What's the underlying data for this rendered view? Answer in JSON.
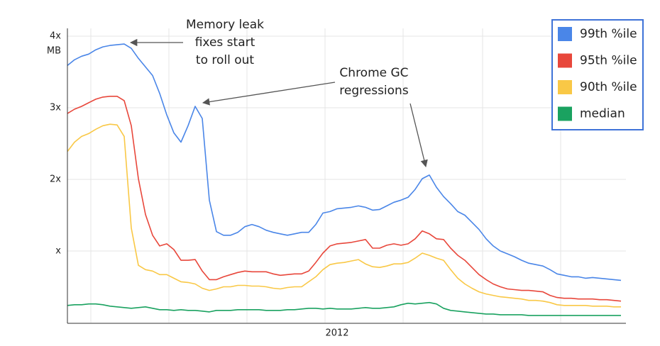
{
  "chart_data": {
    "type": "line",
    "y_unit": "MB",
    "categories": [
      null,
      null,
      null,
      null,
      null,
      null,
      null,
      null,
      null,
      null,
      null,
      null,
      null,
      null,
      null,
      null,
      null,
      null,
      null,
      null,
      null,
      null,
      null,
      null,
      null,
      null,
      null,
      null,
      null,
      null,
      null,
      null,
      null,
      null,
      null,
      null,
      null,
      null,
      "2012",
      null,
      null,
      null,
      null,
      null,
      null,
      null,
      null,
      null,
      null,
      null,
      null,
      null,
      null,
      null,
      null,
      null,
      null,
      null,
      null,
      null,
      null,
      null,
      null,
      null,
      null,
      null,
      null,
      null,
      null,
      null,
      null,
      null,
      null,
      null,
      null,
      null,
      null,
      null,
      null
    ],
    "series": [
      {
        "name": "99th %ile",
        "color": "#4a86e8",
        "values": [
          3.59,
          3.67,
          3.72,
          3.75,
          3.81,
          3.85,
          3.87,
          3.88,
          3.89,
          3.83,
          3.69,
          3.57,
          3.45,
          3.2,
          2.9,
          2.65,
          2.52,
          2.75,
          3.02,
          2.85,
          1.71,
          1.27,
          1.22,
          1.22,
          1.26,
          1.34,
          1.37,
          1.34,
          1.29,
          1.26,
          1.24,
          1.22,
          1.24,
          1.26,
          1.26,
          1.37,
          1.53,
          1.55,
          1.59,
          1.6,
          1.61,
          1.63,
          1.61,
          1.57,
          1.58,
          1.63,
          1.68,
          1.71,
          1.75,
          1.86,
          2.01,
          2.06,
          1.89,
          1.76,
          1.66,
          1.55,
          1.5,
          1.4,
          1.3,
          1.17,
          1.07,
          1.0,
          0.96,
          0.92,
          0.87,
          0.83,
          0.81,
          0.79,
          0.74,
          0.68,
          0.66,
          0.64,
          0.64,
          0.62,
          0.63,
          0.62,
          0.61,
          0.6,
          0.59
        ]
      },
      {
        "name": "95th %ile",
        "color": "#e8473b",
        "values": [
          2.92,
          2.98,
          3.02,
          3.07,
          3.12,
          3.15,
          3.16,
          3.16,
          3.1,
          2.75,
          2.01,
          1.51,
          1.22,
          1.07,
          1.1,
          1.02,
          0.87,
          0.87,
          0.88,
          0.72,
          0.6,
          0.6,
          0.64,
          0.67,
          0.7,
          0.72,
          0.71,
          0.71,
          0.71,
          0.68,
          0.66,
          0.67,
          0.68,
          0.68,
          0.72,
          0.84,
          0.97,
          1.07,
          1.1,
          1.11,
          1.12,
          1.14,
          1.16,
          1.04,
          1.04,
          1.08,
          1.1,
          1.08,
          1.1,
          1.17,
          1.28,
          1.24,
          1.17,
          1.16,
          1.04,
          0.94,
          0.87,
          0.77,
          0.67,
          0.6,
          0.54,
          0.5,
          0.47,
          0.46,
          0.45,
          0.45,
          0.44,
          0.43,
          0.38,
          0.35,
          0.34,
          0.34,
          0.33,
          0.33,
          0.33,
          0.32,
          0.32,
          0.31,
          0.3
        ]
      },
      {
        "name": "90th %ile",
        "color": "#f9c846",
        "values": [
          2.39,
          2.52,
          2.6,
          2.64,
          2.7,
          2.75,
          2.77,
          2.76,
          2.6,
          1.32,
          0.8,
          0.74,
          0.72,
          0.67,
          0.67,
          0.62,
          0.57,
          0.56,
          0.54,
          0.48,
          0.45,
          0.47,
          0.5,
          0.5,
          0.52,
          0.52,
          0.51,
          0.51,
          0.5,
          0.48,
          0.47,
          0.49,
          0.5,
          0.5,
          0.57,
          0.64,
          0.74,
          0.81,
          0.83,
          0.84,
          0.86,
          0.88,
          0.82,
          0.78,
          0.77,
          0.79,
          0.82,
          0.82,
          0.84,
          0.9,
          0.97,
          0.94,
          0.9,
          0.87,
          0.74,
          0.62,
          0.54,
          0.48,
          0.43,
          0.4,
          0.38,
          0.36,
          0.35,
          0.34,
          0.33,
          0.31,
          0.31,
          0.3,
          0.28,
          0.25,
          0.24,
          0.24,
          0.24,
          0.24,
          0.23,
          0.23,
          0.23,
          0.22,
          0.22
        ]
      },
      {
        "name": "median",
        "color": "#1aa260",
        "values": [
          0.24,
          0.25,
          0.25,
          0.26,
          0.26,
          0.25,
          0.23,
          0.22,
          0.21,
          0.2,
          0.21,
          0.22,
          0.2,
          0.18,
          0.18,
          0.17,
          0.18,
          0.17,
          0.17,
          0.16,
          0.15,
          0.17,
          0.17,
          0.17,
          0.18,
          0.18,
          0.18,
          0.18,
          0.17,
          0.17,
          0.17,
          0.18,
          0.18,
          0.19,
          0.2,
          0.2,
          0.19,
          0.2,
          0.19,
          0.19,
          0.19,
          0.2,
          0.21,
          0.2,
          0.2,
          0.21,
          0.22,
          0.25,
          0.27,
          0.26,
          0.27,
          0.28,
          0.26,
          0.2,
          0.17,
          0.16,
          0.15,
          0.14,
          0.13,
          0.12,
          0.12,
          0.11,
          0.11,
          0.11,
          0.11,
          0.1,
          0.1,
          0.1,
          0.1,
          0.1,
          0.1,
          0.1,
          0.1,
          0.1,
          0.1,
          0.1,
          0.1,
          0.1,
          0.1
        ]
      }
    ],
    "ylim": [
      0,
      4
    ],
    "yticks": [
      {
        "value": 1,
        "label": "x"
      },
      {
        "value": 2,
        "label": "2x"
      },
      {
        "value": 3,
        "label": "3x"
      },
      {
        "value": 4,
        "label": "4x"
      }
    ],
    "grid": true,
    "legend": "top-right",
    "annotations": [
      {
        "text": [
          "Memory leak",
          "fixes start",
          "to roll out"
        ]
      },
      {
        "text": [
          "Chrome GC",
          "regressions"
        ]
      }
    ]
  }
}
